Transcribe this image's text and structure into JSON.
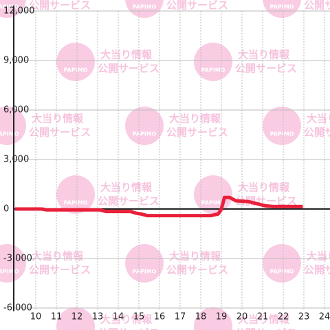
{
  "chart_data": {
    "type": "line",
    "x": [
      9,
      10.3,
      10.5,
      13.1,
      13.4,
      14.6,
      14.85,
      15.1,
      15.4,
      18.5,
      18.85,
      19.0,
      19.15,
      19.4,
      19.7,
      20.3,
      20.8,
      21.1,
      21.5,
      22.95
    ],
    "series": [
      {
        "color": "#e8203a",
        "values": [
          0,
          0,
          -50,
          -50,
          -150,
          -150,
          -250,
          -300,
          -400,
          -400,
          -300,
          0,
          700,
          700,
          500,
          450,
          300,
          200,
          150,
          150
        ]
      }
    ],
    "xlim": [
      9,
      24.3
    ],
    "ylim": [
      -6000,
      12000
    ],
    "xticks": [
      10,
      11,
      12,
      13,
      14,
      15,
      16,
      17,
      18,
      19,
      20,
      21,
      22,
      23,
      24
    ],
    "yticks": [
      {
        "value": -6000,
        "label": "-6,000"
      },
      {
        "value": -3000,
        "label": "-3,000"
      },
      0,
      {
        "value": 3000,
        "label": "3,000"
      },
      {
        "value": 6000,
        "label": "6,000"
      },
      {
        "value": 9000,
        "label": "9,000"
      },
      {
        "value": 12000,
        "label": "12,000"
      }
    ],
    "grid": true
  },
  "watermark": {
    "logo": "PAPIMO",
    "text_1": "大当り情報",
    "text_2": "公開サービス"
  }
}
